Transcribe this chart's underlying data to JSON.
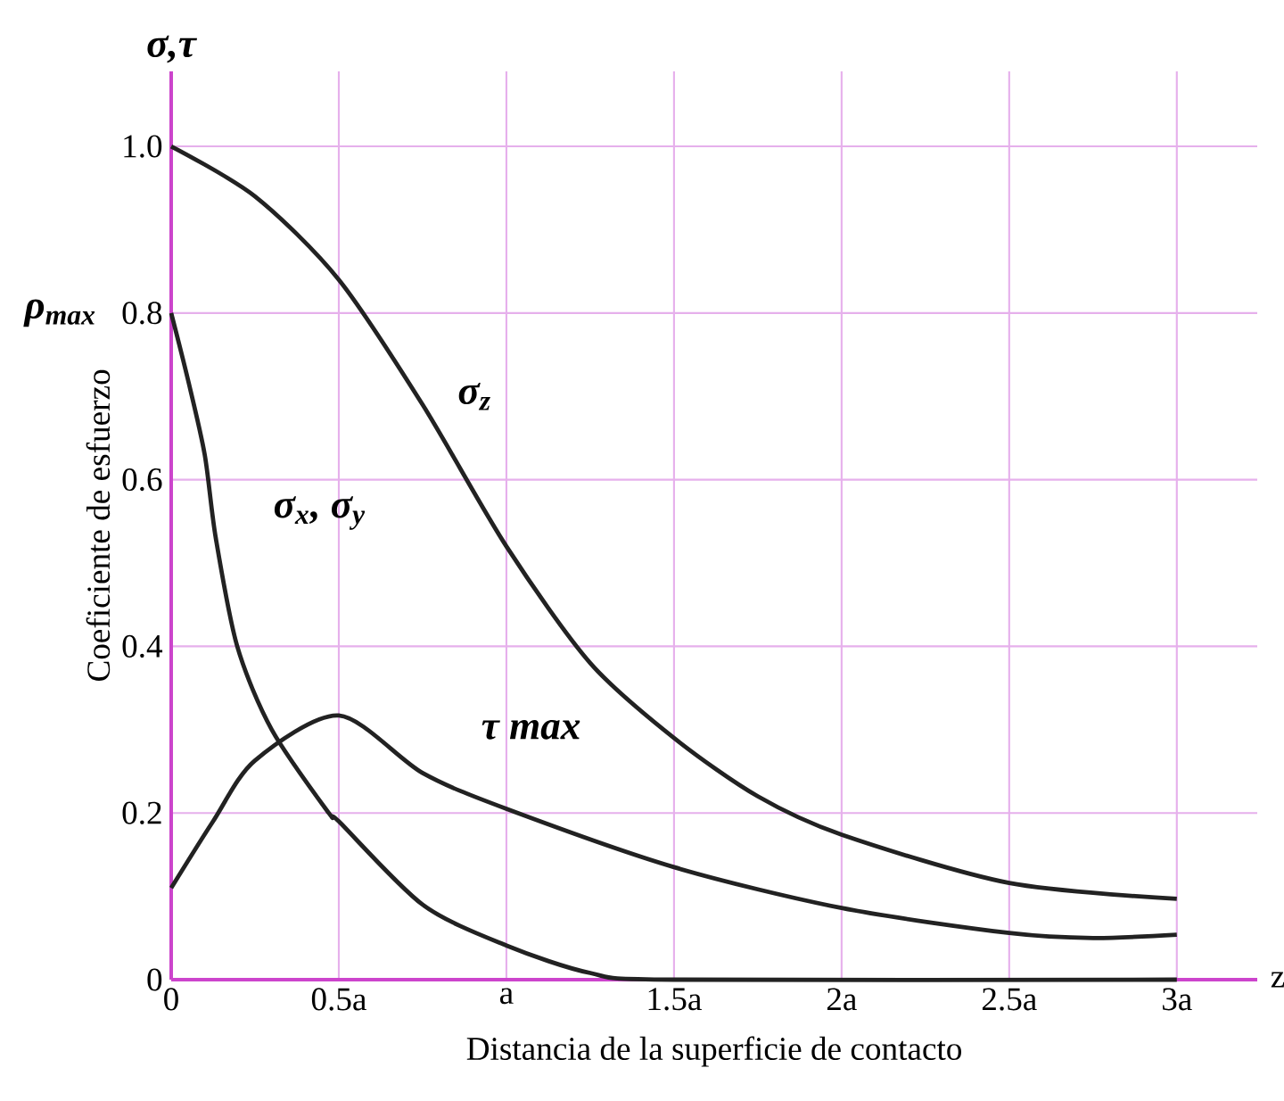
{
  "chart_data": {
    "type": "line",
    "xlabel": "Distancia de la superficie de contacto",
    "ylabel": "Coeficiente de esfuerzo",
    "annotations": [
      "σ,τ",
      "ρ$_{max}$",
      "z"
    ],
    "xlim": [
      0,
      3.24
    ],
    "ylim": [
      0,
      1.09
    ],
    "xticks": [
      0,
      {
        "value": 0.5,
        "label": "0.5a"
      },
      {
        "value": 1,
        "label": "a"
      },
      {
        "value": 1.5,
        "label": "1.5a"
      },
      {
        "value": 2,
        "label": "2a"
      },
      {
        "value": 2.5,
        "label": "2.5a"
      },
      {
        "value": 3,
        "label": "3a"
      }
    ],
    "yticks": [
      0,
      0.2,
      0.4,
      0.6,
      0.8,
      {
        "value": 1,
        "label": "1.0"
      }
    ],
    "grid": true,
    "marker": "none",
    "line_style": "solid",
    "series": [
      {
        "name": "σ$_{z}$",
        "color": "#222222",
        "x": [
          0,
          0.25,
          0.5,
          0.75,
          1,
          1.25,
          1.5,
          1.75,
          2,
          2.5,
          3
        ],
        "values": [
          1.0,
          0.94,
          0.84,
          0.69,
          0.52,
          0.38,
          0.29,
          0.22,
          0.174,
          0.116,
          0.097
        ]
      },
      {
        "name": "σ$_{x}$, σ$_{y}$",
        "color": "#222222",
        "x": [
          0,
          0.05,
          0.1,
          0.133,
          0.197,
          0.3,
          0.47,
          0.5,
          0.75,
          1,
          1.25,
          1.5,
          3
        ],
        "values": [
          0.8,
          0.72,
          0.63,
          0.53,
          0.4,
          0.3,
          0.2,
          0.19,
          0.09,
          0.041,
          0.008,
          0,
          0
        ]
      },
      {
        "name": "τ max",
        "color": "#222222",
        "x": [
          0,
          0.125,
          0.25,
          0.5,
          0.75,
          1,
          1.5,
          2,
          2.5,
          2.75,
          3
        ],
        "values": [
          0.11,
          0.19,
          0.263,
          0.317,
          0.248,
          0.205,
          0.135,
          0.086,
          0.056,
          0.05,
          0.054
        ]
      }
    ]
  }
}
